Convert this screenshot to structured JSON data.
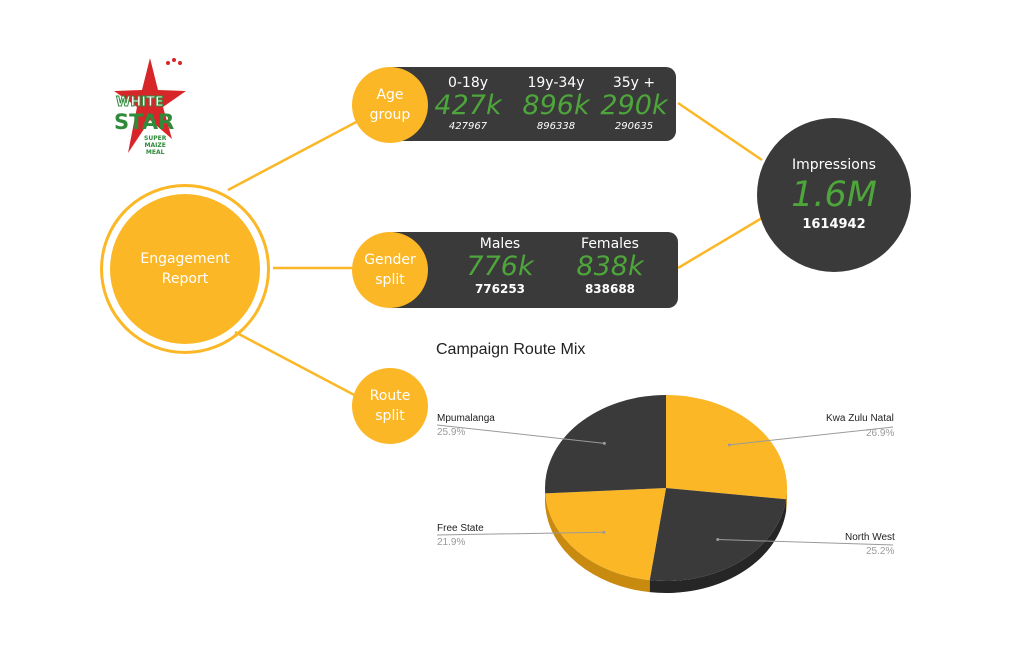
{
  "logo": {
    "line1": "WHITE",
    "line2": "STAR",
    "line3": "SUPER",
    "line4": "MAIZE",
    "line5": "MEAL"
  },
  "center_node": {
    "line1": "Engagement",
    "line2": "Report"
  },
  "age_node": {
    "line1": "Age",
    "line2": "group"
  },
  "gender_node": {
    "line1": "Gender",
    "line2": "split"
  },
  "route_node": {
    "line1": "Route",
    "line2": "split"
  },
  "age_panel": {
    "groups": [
      {
        "label": "0-18y",
        "short": "427k",
        "exact": "427967"
      },
      {
        "label": "19y-34y",
        "short": "896k",
        "exact": "896338"
      },
      {
        "label": "35y +",
        "short": "290k",
        "exact": "290635"
      }
    ]
  },
  "gender_panel": {
    "groups": [
      {
        "label": "Males",
        "short": "776k",
        "exact": "776253"
      },
      {
        "label": "Females",
        "short": "838k",
        "exact": "838688"
      }
    ]
  },
  "impressions": {
    "label": "Impressions",
    "short": "1.6M",
    "exact": "1614942"
  },
  "colors": {
    "yellow": "#fbb725",
    "dark": "#3a3a3a",
    "green": "#4ea53b",
    "red": "#d7262a"
  },
  "chart_data": {
    "type": "pie",
    "title": "Campaign Route Mix",
    "slices": [
      {
        "name": "Kwa Zulu Natal",
        "value": 26.9,
        "label": "26.9%",
        "color": "#fbb725"
      },
      {
        "name": "North West",
        "value": 25.2,
        "label": "25.2%",
        "color": "#3a3a3a"
      },
      {
        "name": "Free State",
        "value": 21.9,
        "label": "21.9%",
        "color": "#fbb725"
      },
      {
        "name": "Mpumalanga",
        "value": 25.9,
        "label": "25.9%",
        "color": "#3a3a3a"
      }
    ]
  }
}
